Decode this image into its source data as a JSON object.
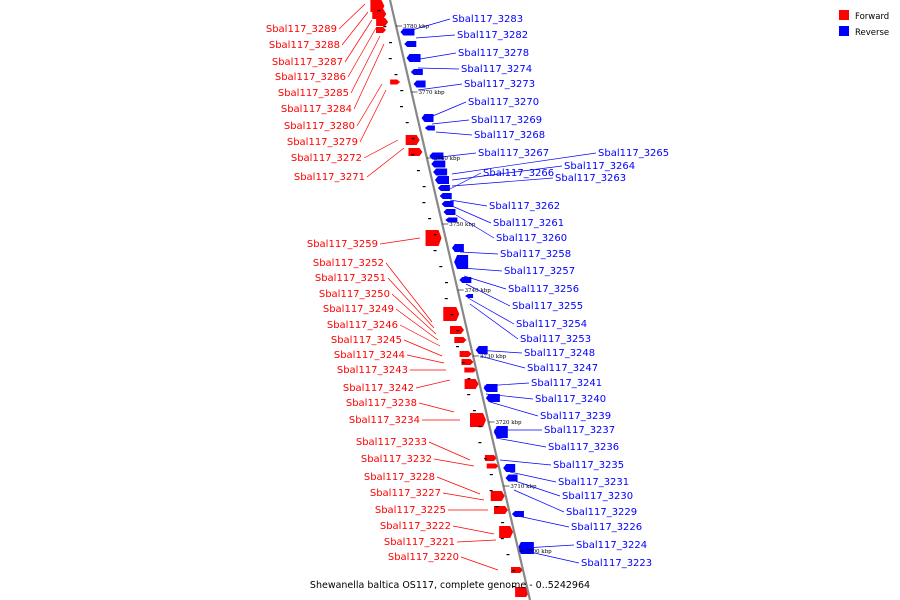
{
  "caption": "Shewanella baltica OS117, complete genome - 0..5242964",
  "legend": [
    {
      "label": "Forward",
      "color": "#ff0000"
    },
    {
      "label": "Reverse",
      "color": "#0000ff"
    }
  ],
  "colors": {
    "forward": "#ff0000",
    "reverse": "#0000ff",
    "backbone": "#888888"
  },
  "ticks": [
    "3780 kbp",
    "3770 kbp",
    "3760 kbp",
    "3750 kbp",
    "3740 kbp",
    "3730 kbp",
    "3720 kbp",
    "3710 kbp",
    "3700 kbp"
  ],
  "forward_genes": [
    "Sbal117_3289",
    "Sbal117_3288",
    "Sbal117_3287",
    "Sbal117_3286",
    "Sbal117_3285",
    "Sbal117_3284",
    "Sbal117_3280",
    "Sbal117_3279",
    "Sbal117_3272",
    "Sbal117_3271",
    "Sbal117_3259",
    "Sbal117_3252",
    "Sbal117_3251",
    "Sbal117_3250",
    "Sbal117_3249",
    "Sbal117_3246",
    "Sbal117_3245",
    "Sbal117_3244",
    "Sbal117_3243",
    "Sbal117_3242",
    "Sbal117_3238",
    "Sbal117_3234",
    "Sbal117_3233",
    "Sbal117_3232",
    "Sbal117_3228",
    "Sbal117_3227",
    "Sbal117_3225",
    "Sbal117_3222",
    "Sbal117_3221",
    "Sbal117_3220"
  ],
  "reverse_genes": [
    "Sbal117_3283",
    "Sbal117_3282",
    "Sbal117_3278",
    "Sbal117_3274",
    "Sbal117_3273",
    "Sbal117_3270",
    "Sbal117_3269",
    "Sbal117_3268",
    "Sbal117_3267",
    "Sbal117_3266",
    "Sbal117_3265",
    "Sbal117_3264",
    "Sbal117_3263",
    "Sbal117_3262",
    "Sbal117_3261",
    "Sbal117_3260",
    "Sbal117_3258",
    "Sbal117_3257",
    "Sbal117_3256",
    "Sbal117_3255",
    "Sbal117_3254",
    "Sbal117_3253",
    "Sbal117_3248",
    "Sbal117_3247",
    "Sbal117_3241",
    "Sbal117_3240",
    "Sbal117_3239",
    "Sbal117_3237",
    "Sbal117_3236",
    "Sbal117_3235",
    "Sbal117_3231",
    "Sbal117_3230",
    "Sbal117_3229",
    "Sbal117_3226",
    "Sbal117_3224",
    "Sbal117_3223"
  ]
}
